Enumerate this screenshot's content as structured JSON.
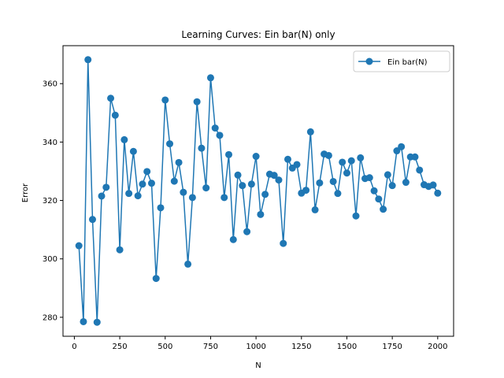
{
  "chart_data": {
    "type": "line",
    "title": "Learning Curves: Ein bar(N) only",
    "xlabel": "N",
    "ylabel": "Error",
    "xlim": [
      -62.5,
      2087.5
    ],
    "ylim": [
      273.5,
      373
    ],
    "xticks": [
      0,
      250,
      500,
      750,
      1000,
      1250,
      1500,
      1750,
      2000
    ],
    "yticks": [
      280,
      300,
      320,
      340,
      360
    ],
    "grid": false,
    "legend": "top-right",
    "series": [
      {
        "name": "Ein bar(N)",
        "color": "#1f77b4",
        "marker": "circle",
        "x": [
          25,
          50,
          75,
          100,
          125,
          150,
          175,
          200,
          225,
          250,
          275,
          300,
          325,
          350,
          375,
          400,
          425,
          450,
          475,
          500,
          525,
          550,
          575,
          600,
          625,
          650,
          675,
          700,
          725,
          750,
          775,
          800,
          825,
          850,
          875,
          900,
          925,
          950,
          975,
          1000,
          1025,
          1050,
          1075,
          1100,
          1125,
          1150,
          1175,
          1200,
          1225,
          1250,
          1275,
          1300,
          1325,
          1350,
          1375,
          1400,
          1425,
          1450,
          1475,
          1500,
          1525,
          1550,
          1575,
          1600,
          1625,
          1650,
          1675,
          1700,
          1725,
          1750,
          1775,
          1800,
          1825,
          1850,
          1875,
          1900,
          1925,
          1950,
          1975,
          2000
        ],
        "values": [
          304.5,
          278.5,
          368.2,
          313.5,
          278.3,
          321.5,
          324.5,
          355.0,
          349.2,
          303.1,
          340.8,
          322.4,
          336.8,
          321.6,
          325.6,
          329.9,
          325.9,
          293.3,
          317.5,
          354.4,
          339.4,
          326.6,
          333.0,
          322.8,
          298.2,
          321.0,
          353.8,
          337.9,
          324.3,
          362.0,
          344.8,
          342.3,
          321.0,
          335.7,
          306.6,
          328.7,
          325.1,
          309.3,
          325.6,
          335.1,
          315.2,
          322.1,
          329.0,
          328.6,
          327.0,
          305.3,
          334.1,
          331.1,
          332.3,
          322.5,
          323.5,
          343.5,
          316.8,
          326.0,
          335.9,
          335.4,
          326.5,
          322.4,
          333.1,
          329.4,
          333.6,
          314.7,
          334.6,
          327.5,
          327.8,
          323.3,
          320.5,
          317.0,
          328.8,
          325.1,
          337.0,
          338.4,
          326.2,
          334.9,
          334.9,
          330.4,
          325.4,
          324.8,
          325.3,
          322.5
        ]
      }
    ]
  }
}
